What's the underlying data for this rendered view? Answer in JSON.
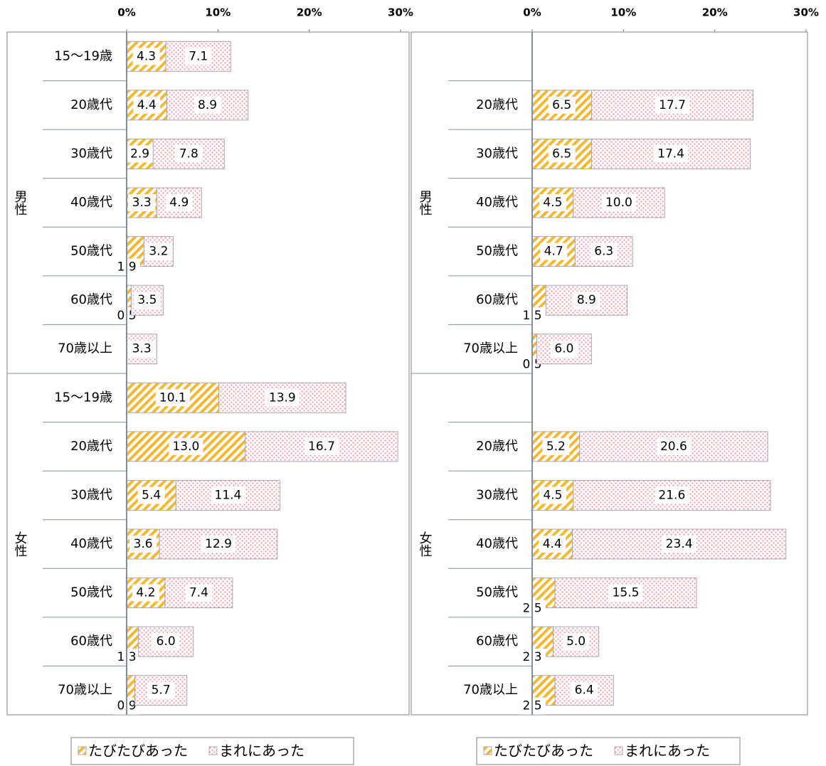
{
  "chart_data": [
    {
      "type": "stacked-barh",
      "groups": [
        {
          "name": "男性",
          "categories": [
            "15〜19歳",
            "20歳代",
            "30歳代",
            "40歳代",
            "50歳代",
            "60歳代",
            "70歳以上"
          ]
        },
        {
          "name": "女性",
          "categories": [
            "15〜19歳",
            "20歳代",
            "30歳代",
            "40歳代",
            "50歳代",
            "60歳代",
            "70歳以上"
          ]
        }
      ],
      "series": [
        {
          "name": "たびたびあった",
          "color": "#f5b830",
          "values": [
            4.3,
            4.4,
            2.9,
            3.3,
            1.9,
            0.5,
            0,
            10.1,
            13.0,
            5.4,
            3.6,
            4.2,
            1.3,
            0.9
          ],
          "value_labels": [
            "4.3",
            "4.4",
            "2.9",
            "3.3",
            "1.9",
            "0.5",
            null,
            "10.1",
            "13.0",
            "5.4",
            "3.6",
            "4.2",
            "1.3",
            "0.9"
          ]
        },
        {
          "name": "まれにあった",
          "color": "#f4a0ac",
          "values": [
            7.1,
            8.9,
            7.8,
            4.9,
            3.2,
            3.5,
            3.3,
            13.9,
            16.7,
            11.4,
            12.9,
            7.4,
            6.0,
            5.7
          ],
          "value_labels": [
            "7.1",
            "8.9",
            "7.8",
            "4.9",
            "3.2",
            "3.5",
            "3.3",
            "13.9",
            "16.7",
            "11.4",
            "12.9",
            "7.4",
            "6.0",
            "5.7"
          ]
        }
      ],
      "xlim": [
        0,
        30
      ],
      "xticks": [
        {
          "value": 0,
          "label": "0%"
        },
        {
          "value": 10,
          "label": "10%"
        },
        {
          "value": 20,
          "label": "20%"
        },
        {
          "value": 30,
          "label": "30%"
        }
      ]
    },
    {
      "type": "stacked-barh",
      "groups": [
        {
          "name": "男性",
          "categories": [
            null,
            "20歳代",
            "30歳代",
            "40歳代",
            "50歳代",
            "60歳代",
            "70歳以上"
          ]
        },
        {
          "name": "女性",
          "categories": [
            null,
            "20歳代",
            "30歳代",
            "40歳代",
            "50歳代",
            "60歳代",
            "70歳以上"
          ]
        }
      ],
      "series": [
        {
          "name": "たびたびあった",
          "color": "#f5b830",
          "values": [
            null,
            6.5,
            6.5,
            4.5,
            4.7,
            1.5,
            0.5,
            null,
            5.2,
            4.5,
            4.4,
            2.5,
            2.3,
            2.5
          ],
          "value_labels": [
            null,
            "6.5",
            "6.5",
            "4.5",
            "4.7",
            "1.5",
            "0.5",
            null,
            "5.2",
            "4.5",
            "4.4",
            "2.5",
            "2.3",
            "2.5"
          ]
        },
        {
          "name": "まれにあった",
          "color": "#f4a0ac",
          "values": [
            null,
            17.7,
            17.4,
            10.0,
            6.3,
            8.9,
            6.0,
            null,
            20.6,
            21.6,
            23.4,
            15.5,
            5.0,
            6.4
          ],
          "value_labels": [
            null,
            "17.7",
            "17.4",
            "10.0",
            "6.3",
            "8.9",
            "6.0",
            null,
            "20.6",
            "21.6",
            "23.4",
            "15.5",
            "5.0",
            "6.4"
          ]
        }
      ],
      "xlim": [
        0,
        30
      ],
      "xticks": [
        {
          "value": 0,
          "label": "0%"
        },
        {
          "value": 10,
          "label": "10%"
        },
        {
          "value": 20,
          "label": "20%"
        },
        {
          "value": 30,
          "label": "30%"
        }
      ]
    }
  ]
}
